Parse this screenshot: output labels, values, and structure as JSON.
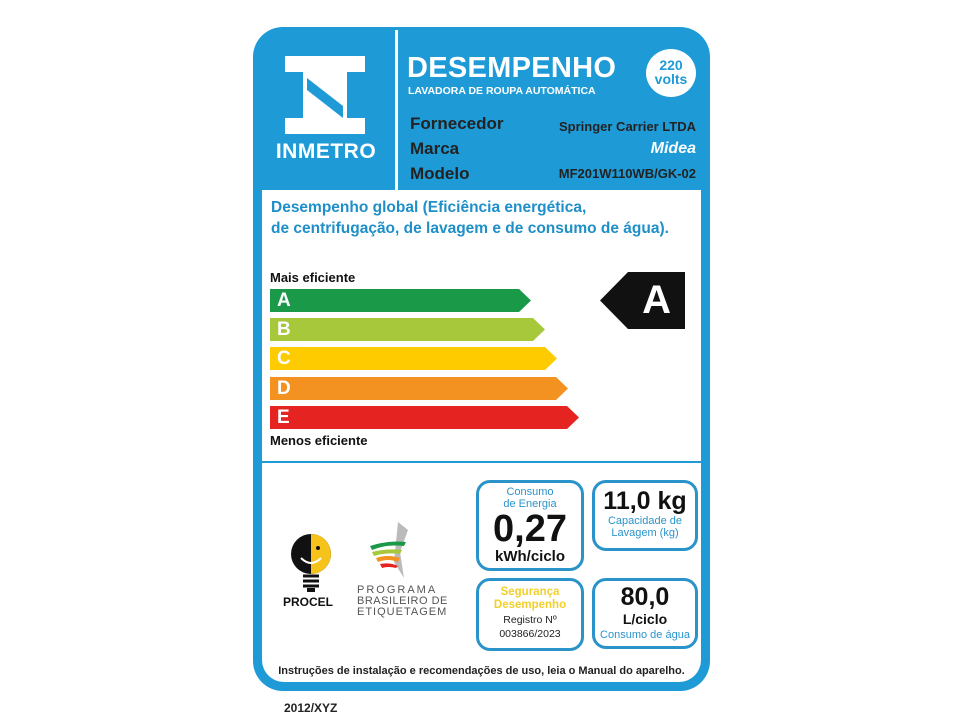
{
  "header": {
    "logo_text": "INMETRO",
    "title": "DESEMPENHO",
    "subtitle": "LAVADORA DE ROUPA AUTOMÁTICA",
    "voltage_value": "220",
    "voltage_unit": "volts"
  },
  "info": [
    {
      "label": "Fornecedor",
      "value": "Springer Carrier LTDA"
    },
    {
      "label": "Marca",
      "value": "Midea"
    },
    {
      "label": "Modelo",
      "value": "MF201W110WB/GK-02"
    }
  ],
  "description": [
    "Desempenho global (Eficiência energética,",
    "de centrifugação, de lavagem e de consumo de água)."
  ],
  "scale": {
    "top_label": "Mais eficiente",
    "bottom_label": "Menos eficiente",
    "classes": [
      {
        "letter": "A",
        "color": "#1a9a48"
      },
      {
        "letter": "B",
        "color": "#a6c83a"
      },
      {
        "letter": "C",
        "color": "#fecb00"
      },
      {
        "letter": "D",
        "color": "#f39221"
      },
      {
        "letter": "E",
        "color": "#e52421"
      }
    ],
    "rating": "A"
  },
  "logos": {
    "procel": "PROCEL",
    "pbe": [
      "PROGRAMA",
      "BRASILEIRO DE",
      "ETIQUETAGEM"
    ]
  },
  "energy": {
    "caption": "Consumo de Energia",
    "value": "0,27",
    "unit": "kWh/ciclo"
  },
  "capacity": {
    "value": "11,0 kg",
    "caption1": "Capacidade de",
    "caption2": "Lavagem (kg)"
  },
  "security": {
    "line1": "Segurança",
    "line2": "Desempenho",
    "registro_label": "Registro Nº",
    "registro": "003866/2023"
  },
  "water": {
    "value": "80,0",
    "unit": "L/ciclo",
    "caption": "Consumo de água"
  },
  "footer": "Instruções de instalação e recomendações de uso, leia o Manual do aparelho.",
  "code": "2012/XYZ"
}
